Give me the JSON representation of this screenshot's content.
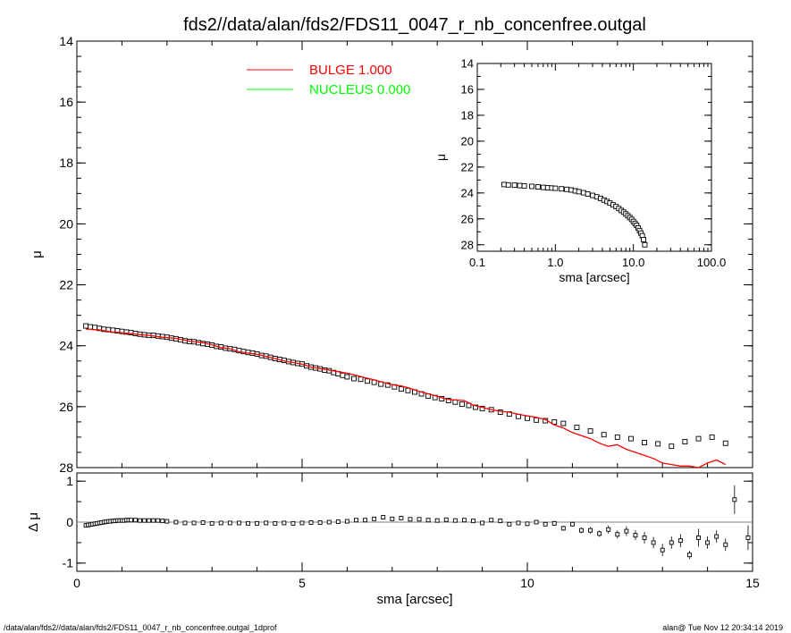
{
  "title": "fds2//data/alan/fds2/FDS11_0047_r_nb_concenfree.outgal",
  "footer_left": "/data/alan/fds2//data/alan/fds2/FDS11_0047_r_nb_concenfree.outgal_1dprof",
  "footer_right": "alan@  Tue Nov 12 20:34:14 2019",
  "colors": {
    "data": "#000000",
    "bulge": "#ff0000",
    "nucleus": "#00ff00",
    "zero_line": "#808080"
  },
  "chart_data": [
    {
      "panel": "main",
      "type": "scatter",
      "xlabel": "",
      "ylabel": "μ",
      "xlim": [
        0,
        15
      ],
      "ylim": [
        28,
        14
      ],
      "y_inverted": true,
      "yticks": [
        14,
        16,
        18,
        20,
        22,
        24,
        26,
        28
      ],
      "x_ticklabels": [],
      "legend": {
        "placement": "top-center",
        "entries": [
          {
            "label": "BULGE  1.000",
            "color": "#ff0000"
          },
          {
            "label": "NUCLEUS  0.000",
            "color": "#00ff00"
          }
        ]
      },
      "series": [
        {
          "name": "data",
          "style": "open-squares",
          "x": [
            0.2,
            0.3,
            0.4,
            0.5,
            0.6,
            0.7,
            0.8,
            0.9,
            1.0,
            1.1,
            1.2,
            1.3,
            1.4,
            1.5,
            1.6,
            1.7,
            1.8,
            1.9,
            2.0,
            2.1,
            2.2,
            2.3,
            2.4,
            2.5,
            2.6,
            2.7,
            2.8,
            2.9,
            3.0,
            3.1,
            3.2,
            3.3,
            3.4,
            3.5,
            3.6,
            3.7,
            3.8,
            3.9,
            4.0,
            4.1,
            4.2,
            4.3,
            4.4,
            4.5,
            4.6,
            4.7,
            4.8,
            4.9,
            5.0,
            5.1,
            5.2,
            5.3,
            5.4,
            5.5,
            5.6,
            5.7,
            5.8,
            5.9,
            6.0,
            6.15,
            6.3,
            6.45,
            6.6,
            6.75,
            6.9,
            7.05,
            7.2,
            7.35,
            7.5,
            7.65,
            7.8,
            7.95,
            8.1,
            8.25,
            8.4,
            8.55,
            8.7,
            8.85,
            9.0,
            9.2,
            9.4,
            9.6,
            9.8,
            10.0,
            10.2,
            10.4,
            10.6,
            10.8,
            11.1,
            11.4,
            11.7,
            12.0,
            12.3,
            12.6,
            12.9,
            13.2,
            13.5,
            13.8,
            14.1,
            14.4
          ],
          "y": [
            23.35,
            23.38,
            23.4,
            23.43,
            23.46,
            23.47,
            23.49,
            23.51,
            23.53,
            23.55,
            23.57,
            23.6,
            23.62,
            23.64,
            23.66,
            23.66,
            23.68,
            23.7,
            23.72,
            23.75,
            23.77,
            23.8,
            23.84,
            23.86,
            23.87,
            23.9,
            23.93,
            23.95,
            23.98,
            24.02,
            24.04,
            24.08,
            24.1,
            24.12,
            24.16,
            24.19,
            24.22,
            24.24,
            24.27,
            24.32,
            24.34,
            24.38,
            24.42,
            24.45,
            24.48,
            24.52,
            24.55,
            24.58,
            24.6,
            24.66,
            24.7,
            24.73,
            24.76,
            24.8,
            24.82,
            24.88,
            24.92,
            24.97,
            25.02,
            25.08,
            25.1,
            25.16,
            25.2,
            25.26,
            25.29,
            25.35,
            25.42,
            25.47,
            25.52,
            25.58,
            25.65,
            25.7,
            25.74,
            25.8,
            25.85,
            25.92,
            25.96,
            26.02,
            26.06,
            26.1,
            26.18,
            26.24,
            26.32,
            26.38,
            26.44,
            26.46,
            26.5,
            26.55,
            26.68,
            26.8,
            26.92,
            27.0,
            27.05,
            27.18,
            27.22,
            27.3,
            27.15,
            27.05,
            27.0,
            27.2
          ]
        },
        {
          "name": "BULGE  1.000",
          "style": "line",
          "x": [
            0.2,
            0.5,
            0.8,
            1.0,
            1.3,
            1.6,
            1.9,
            2.2,
            2.5,
            2.8,
            3.0,
            3.2,
            3.4,
            3.6,
            3.8,
            4.0,
            4.2,
            4.4,
            4.6,
            4.8,
            5.0,
            5.2,
            5.4,
            5.6,
            5.8,
            6.0,
            6.2,
            6.4,
            6.6,
            6.8,
            7.0,
            7.2,
            7.4,
            7.6,
            7.8,
            8.0,
            8.2,
            8.4,
            8.6,
            8.8,
            9.0,
            9.2,
            9.4,
            9.6,
            9.8,
            10.0,
            10.2,
            10.4,
            10.6,
            10.8,
            11.0,
            11.2,
            11.4,
            11.6,
            11.8,
            12.0,
            12.2,
            12.4,
            12.6,
            12.8,
            13.0,
            13.2,
            13.4,
            13.6,
            13.8,
            14.0,
            14.2,
            14.4
          ],
          "y": [
            23.45,
            23.48,
            23.55,
            23.57,
            23.62,
            23.66,
            23.72,
            23.76,
            23.85,
            23.9,
            23.97,
            24.06,
            24.1,
            24.2,
            24.24,
            24.28,
            24.35,
            24.42,
            24.5,
            24.55,
            24.6,
            24.7,
            24.75,
            24.8,
            24.85,
            24.9,
            24.97,
            25.05,
            25.12,
            25.2,
            25.28,
            25.32,
            25.4,
            25.5,
            25.58,
            25.66,
            25.75,
            25.78,
            25.8,
            25.95,
            26.02,
            26.1,
            26.15,
            26.18,
            26.25,
            26.3,
            26.35,
            26.42,
            26.6,
            26.7,
            26.85,
            26.95,
            27.05,
            27.2,
            27.3,
            27.25,
            27.4,
            27.5,
            27.6,
            27.7,
            27.85,
            27.9,
            27.95,
            27.95,
            28.0,
            27.85,
            27.75,
            27.9
          ]
        }
      ]
    },
    {
      "panel": "residual",
      "type": "scatter",
      "xlabel": "sma [arcsec]",
      "ylabel": "Δ μ",
      "xlim": [
        0,
        15
      ],
      "ylim": [
        -1.2,
        1.2
      ],
      "xticks": [
        0,
        5,
        10,
        15
      ],
      "yticks": [
        1,
        0,
        -1
      ],
      "zero_line": true,
      "series": [
        {
          "name": "residual",
          "style": "open-squares-errorbars",
          "x": [
            0.2,
            0.25,
            0.3,
            0.35,
            0.4,
            0.45,
            0.5,
            0.55,
            0.6,
            0.65,
            0.7,
            0.75,
            0.8,
            0.85,
            0.9,
            0.95,
            1.0,
            1.05,
            1.1,
            1.15,
            1.2,
            1.3,
            1.4,
            1.5,
            1.6,
            1.7,
            1.8,
            1.9,
            2.0,
            2.2,
            2.4,
            2.6,
            2.8,
            3.0,
            3.2,
            3.4,
            3.6,
            3.8,
            4.0,
            4.2,
            4.4,
            4.6,
            4.8,
            5.0,
            5.2,
            5.4,
            5.6,
            5.8,
            6.0,
            6.2,
            6.4,
            6.6,
            6.8,
            7.0,
            7.2,
            7.4,
            7.6,
            7.8,
            8.0,
            8.2,
            8.4,
            8.6,
            8.8,
            9.0,
            9.2,
            9.4,
            9.6,
            9.8,
            10.0,
            10.2,
            10.4,
            10.6,
            10.8,
            11.0,
            11.2,
            11.4,
            11.6,
            11.8,
            12.0,
            12.2,
            12.4,
            12.6,
            12.8,
            13.0,
            13.2,
            13.4,
            13.6,
            13.8,
            14.0,
            14.2,
            14.4,
            14.6,
            14.9
          ],
          "y": [
            -0.08,
            -0.07,
            -0.06,
            -0.05,
            -0.04,
            -0.03,
            -0.02,
            -0.01,
            0.0,
            0.01,
            0.02,
            0.02,
            0.03,
            0.03,
            0.04,
            0.04,
            0.04,
            0.04,
            0.05,
            0.05,
            0.05,
            0.05,
            0.04,
            0.04,
            0.04,
            0.04,
            0.04,
            0.03,
            0.02,
            0.0,
            -0.02,
            -0.02,
            -0.01,
            -0.03,
            -0.02,
            -0.02,
            -0.02,
            -0.03,
            -0.03,
            -0.02,
            -0.03,
            -0.02,
            -0.03,
            -0.02,
            -0.01,
            -0.01,
            0.0,
            0.01,
            0.02,
            0.05,
            0.05,
            0.08,
            0.12,
            0.08,
            0.1,
            0.07,
            0.07,
            0.05,
            0.04,
            0.06,
            0.04,
            0.05,
            0.03,
            -0.02,
            0.05,
            0.03,
            -0.05,
            -0.02,
            -0.04,
            0.0,
            -0.05,
            -0.03,
            -0.15,
            -0.05,
            -0.2,
            -0.2,
            -0.28,
            -0.18,
            -0.3,
            -0.22,
            -0.32,
            -0.38,
            -0.5,
            -0.68,
            -0.5,
            -0.45,
            -0.8,
            -0.38,
            -0.5,
            -0.35,
            -0.55,
            0.55,
            -0.38
          ],
          "err": [
            0.02,
            0.02,
            0.02,
            0.02,
            0.02,
            0.02,
            0.02,
            0.02,
            0.02,
            0.02,
            0.02,
            0.02,
            0.02,
            0.02,
            0.02,
            0.02,
            0.02,
            0.02,
            0.02,
            0.02,
            0.02,
            0.02,
            0.02,
            0.02,
            0.02,
            0.02,
            0.02,
            0.02,
            0.02,
            0.02,
            0.02,
            0.02,
            0.02,
            0.02,
            0.02,
            0.02,
            0.02,
            0.02,
            0.02,
            0.02,
            0.02,
            0.02,
            0.02,
            0.02,
            0.02,
            0.02,
            0.02,
            0.02,
            0.02,
            0.02,
            0.02,
            0.02,
            0.03,
            0.03,
            0.03,
            0.03,
            0.03,
            0.03,
            0.03,
            0.03,
            0.03,
            0.03,
            0.04,
            0.04,
            0.04,
            0.04,
            0.05,
            0.05,
            0.05,
            0.05,
            0.05,
            0.06,
            0.06,
            0.06,
            0.07,
            0.08,
            0.08,
            0.1,
            0.1,
            0.12,
            0.12,
            0.14,
            0.14,
            0.15,
            0.15,
            0.16,
            0.1,
            0.22,
            0.15,
            0.15,
            0.15,
            0.35,
            0.3
          ]
        }
      ]
    },
    {
      "panel": "inset",
      "type": "scatter",
      "xlabel": "sma [arcsec]",
      "ylabel": "μ",
      "xscale": "log",
      "xlim": [
        0.1,
        100
      ],
      "ylim": [
        28.5,
        14
      ],
      "y_inverted": true,
      "xticks": [
        0.1,
        1.0,
        10.0,
        100.0
      ],
      "xticklabels": [
        "0.1",
        "1.0",
        "10.0",
        "100.0"
      ],
      "yticks": [
        14,
        16,
        18,
        20,
        22,
        24,
        26,
        28
      ],
      "series": [
        {
          "name": "data",
          "style": "open-squares",
          "x": [
            0.22,
            0.25,
            0.3,
            0.35,
            0.4,
            0.5,
            0.6,
            0.7,
            0.8,
            0.9,
            1.0,
            1.2,
            1.4,
            1.6,
            1.8,
            2.0,
            2.3,
            2.6,
            3.0,
            3.4,
            3.8,
            4.2,
            4.6,
            5.0,
            5.5,
            6.0,
            6.5,
            7.0,
            7.5,
            8.0,
            8.5,
            9.0,
            9.5,
            10.0,
            10.5,
            11.0,
            11.5,
            12.0,
            12.5,
            13.0,
            13.5,
            14.0
          ],
          "y": [
            23.35,
            23.38,
            23.4,
            23.43,
            23.46,
            23.49,
            23.53,
            23.57,
            23.6,
            23.62,
            23.64,
            23.68,
            23.72,
            23.77,
            23.84,
            23.9,
            23.98,
            24.08,
            24.19,
            24.3,
            24.42,
            24.55,
            24.66,
            24.78,
            24.92,
            25.05,
            25.2,
            25.35,
            25.48,
            25.62,
            25.76,
            25.9,
            26.04,
            26.2,
            26.35,
            26.5,
            26.7,
            26.9,
            27.1,
            27.3,
            27.6,
            28.0
          ]
        }
      ]
    }
  ]
}
